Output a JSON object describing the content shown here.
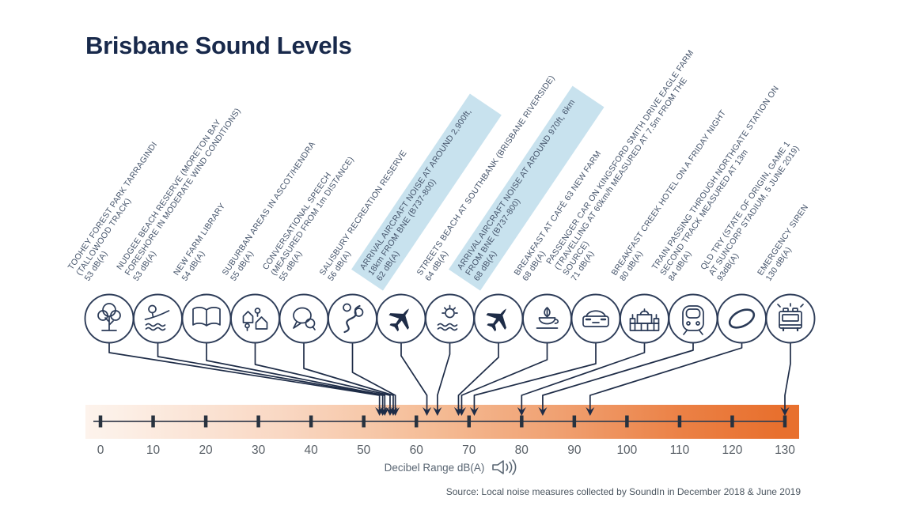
{
  "title": "Brisbane Sound Levels",
  "caption": {
    "label": "Decibel Range dB(A)",
    "icon": "speaker-icon"
  },
  "source": "Source: Local noise measures collected by SoundIn in December 2018 & June 2019",
  "colors": {
    "navy": "#1e2c47",
    "icon_stroke": "#2a3a57",
    "label_text": "#44536a",
    "highlight_blue": "#c8e2ee",
    "bar_start": "#fdf3ec",
    "bar_end": "#e8702e",
    "axis_text": "#585f66"
  },
  "chart_data": {
    "type": "scatter",
    "layout": "annotated-number-line",
    "title": "Brisbane Sound Levels",
    "xlabel": "Decibel Range dB(A)",
    "axis": {
      "min": 0,
      "max": 130,
      "ticks": [
        0,
        10,
        20,
        30,
        40,
        50,
        60,
        70,
        80,
        90,
        100,
        110,
        120,
        130
      ]
    },
    "items": [
      {
        "icon": "tree-icon",
        "highlighted": false,
        "value": 53,
        "lines": [
          "TOOHEY FOREST PARK TARRAGINDI",
          "(TALLOWOOD TRACK)"
        ],
        "db_label": "53 dB(A)"
      },
      {
        "icon": "beach-icon",
        "highlighted": false,
        "value": 53,
        "lines": [
          "NUDGEE BEACH RESERVE (MORETON BAY",
          "FORESHORE IN MODERATE WIND CONDITIONS)"
        ],
        "db_label": "53 dB(A)"
      },
      {
        "icon": "book-icon",
        "highlighted": false,
        "value": 54,
        "lines": [
          "NEW FARM LIBRARY"
        ],
        "db_label": "54 dB(A)"
      },
      {
        "icon": "houses-icon",
        "highlighted": false,
        "value": 55,
        "lines": [
          "SUBURBAN AREAS IN ASCOT/HENDRA"
        ],
        "db_label": "55 dB(A)"
      },
      {
        "icon": "speech-bubbles-icon",
        "highlighted": false,
        "value": 55,
        "lines": [
          "CONVERSATIONAL SPEECH",
          "(MEASURED FROM 1m DISTANCE)"
        ],
        "db_label": "55 dB(A)"
      },
      {
        "icon": "park-path-icon",
        "highlighted": false,
        "value": 56,
        "lines": [
          "SALISBURY RECREATION RESERVE"
        ],
        "db_label": "56 dB(A)"
      },
      {
        "icon": "airplane-icon",
        "highlighted": true,
        "value": 62,
        "lines": [
          "ARRIVAL AIRCRAFT NOISE AT AROUND 2,900ft,",
          "18km FROM BNE (B737-800)"
        ],
        "db_label": "62 dB(A)"
      },
      {
        "icon": "sun-water-icon",
        "highlighted": false,
        "value": 64,
        "lines": [
          "STREETS BEACH AT SOUTHBANK (BRISBANE RIVERSIDE)"
        ],
        "db_label": "64 dB(A)"
      },
      {
        "icon": "airplane-icon",
        "highlighted": true,
        "value": 68,
        "lines": [
          "ARRIVAL AIRCRAFT NOISE AT AROUND 970ft, 6km",
          "FROM BNE (B737-800)"
        ],
        "db_label": "68 dB(A)"
      },
      {
        "icon": "coffee-icon",
        "highlighted": false,
        "value": 68,
        "lines": [
          "BREAKFAST AT CAFÉ 63 NEW FARM"
        ],
        "db_label": "68 dB(A)"
      },
      {
        "icon": "car-icon",
        "highlighted": false,
        "value": 71,
        "lines": [
          "PASSENGER CAR ON KINGSFORD SMITH DRIVE EAGLE FARM",
          "(TRAVELLING AT 60km/h MEASURED AT 7.5m FROM THE",
          "SOURCE)"
        ],
        "db_label": "71 dB(A)"
      },
      {
        "icon": "hotel-building-icon",
        "highlighted": false,
        "value": 80,
        "lines": [
          "BREAKFAST CREEK HOTEL ON A FRIDAY NIGHT"
        ],
        "db_label": "80 dB(A)"
      },
      {
        "icon": "train-icon",
        "highlighted": false,
        "value": 84,
        "lines": [
          "TRAIN PASSING THROUGH NORTHGATE STATION ON",
          "SECOND TRACK MEASURED AT 13m"
        ],
        "db_label": "84 dB(A)"
      },
      {
        "icon": "rugby-ball-icon",
        "highlighted": false,
        "value": 93,
        "lines": [
          "QLD TRY (STATE OF ORIGIN, GAME 1",
          "AT SUNCORP STADIUM, 5 JUNE 2019)"
        ],
        "db_label": "93dB(A)"
      },
      {
        "icon": "fire-truck-icon",
        "highlighted": false,
        "value": 130,
        "lines": [
          "EMERGENCY SIREN"
        ],
        "db_label": "130 dB(A)"
      }
    ]
  }
}
